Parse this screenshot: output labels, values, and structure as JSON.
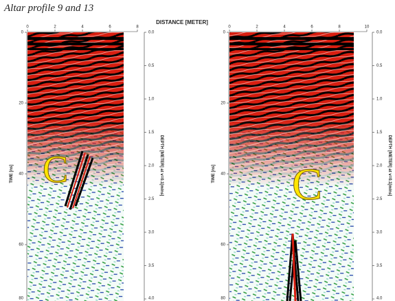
{
  "title": "Altar profile 9 and 13",
  "x_axis_label": "DISTANCE [METER]",
  "panels": [
    {
      "distance_ticks": [
        "0",
        "2",
        "4",
        "6",
        "8"
      ],
      "time_ticks": [
        "0",
        "20",
        "40",
        "60",
        "80"
      ],
      "depth_ticks": [
        "0.0",
        "0.5",
        "1.0",
        "1.5",
        "2.0",
        "2.5",
        "3.0",
        "3.5",
        "4.0"
      ],
      "time_label": "TIME [ns]",
      "depth_label": "DEPTH [METER] at v=0.1[m/ns]",
      "marker": "C"
    },
    {
      "distance_ticks": [
        "0",
        "2",
        "4",
        "6",
        "8",
        "10"
      ],
      "time_ticks": [
        "0",
        "20",
        "40",
        "60",
        "80"
      ],
      "depth_ticks": [
        "0.0",
        "0.5",
        "1.0",
        "1.5",
        "2.0",
        "2.5",
        "3.0",
        "3.5",
        "4.0"
      ],
      "time_label": "TIME [ns]",
      "depth_label": "DEPTH [METER] at v=0.1[m/ns]",
      "marker": "C"
    }
  ]
}
